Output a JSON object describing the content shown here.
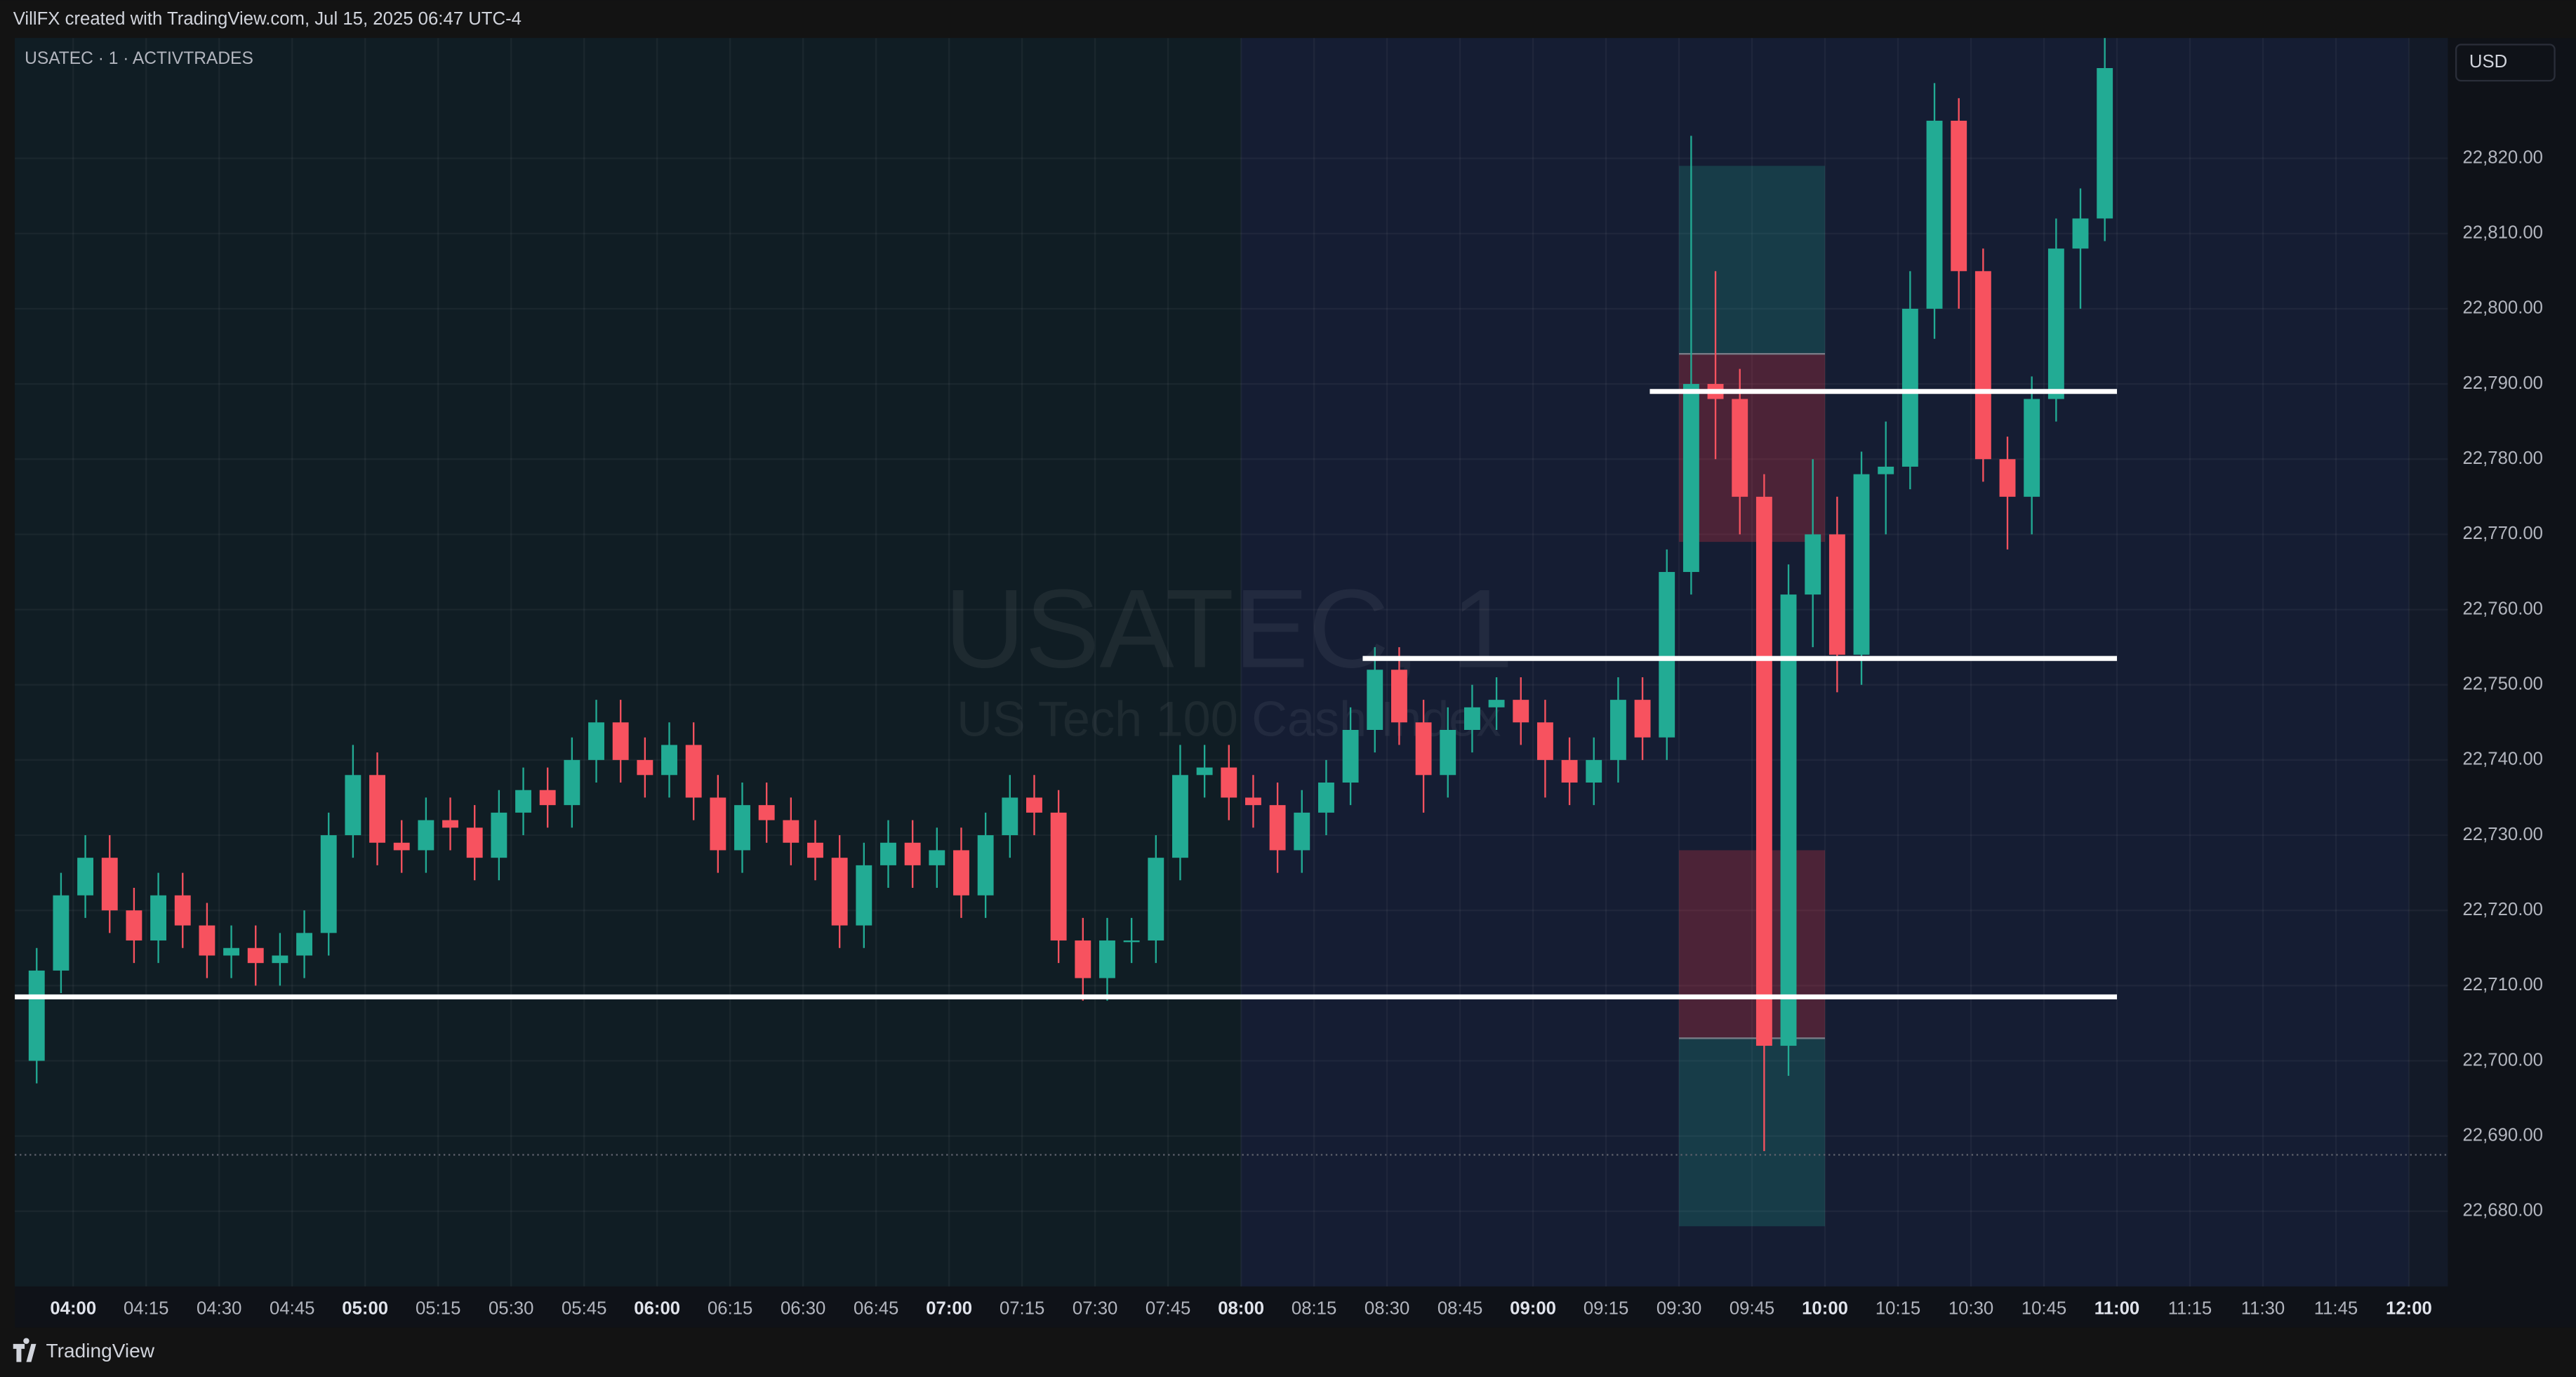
{
  "header": {
    "text": "VillFX created with TradingView.com, Jul 15, 2025 06:47 UTC-4"
  },
  "footer": {
    "brand": "TradingView"
  },
  "chart_data": {
    "type": "candlestick",
    "title": "USATEC · 1 · ACTIVTRADES",
    "watermark": [
      "USATEC, 1",
      "US Tech 100 Cash Index"
    ],
    "currency": "USD",
    "up_color": "#22ab94",
    "down_color": "#f7525f",
    "x": [
      "03:50",
      "03:55",
      "04:00",
      "04:05",
      "04:10",
      "04:15",
      "04:20",
      "04:25",
      "04:30",
      "04:35",
      "04:40",
      "04:45",
      "04:50",
      "04:55",
      "05:00",
      "05:05",
      "05:10",
      "05:15",
      "05:20",
      "05:25",
      "05:30",
      "05:35",
      "05:40",
      "05:45",
      "05:50",
      "05:55",
      "06:00",
      "06:05",
      "06:10",
      "06:15",
      "06:20",
      "06:25",
      "06:30",
      "06:35",
      "06:40",
      "06:45",
      "06:50",
      "06:55",
      "07:00",
      "07:05",
      "07:10",
      "07:15",
      "07:20",
      "07:25",
      "07:30",
      "07:35",
      "07:40",
      "07:45",
      "07:50",
      "07:55",
      "08:00",
      "08:05",
      "08:10",
      "08:15",
      "08:20",
      "08:25",
      "08:30",
      "08:35",
      "08:40",
      "08:45",
      "08:50",
      "08:55",
      "09:00",
      "09:05",
      "09:10",
      "09:15",
      "09:20",
      "09:25",
      "09:30",
      "09:35",
      "09:40",
      "09:45",
      "09:50",
      "09:55",
      "10:00",
      "10:05",
      "10:10",
      "10:15",
      "10:20",
      "10:25",
      "10:30",
      "10:35",
      "10:40",
      "10:45",
      "10:50",
      "10:55"
    ],
    "open": [
      22700,
      22712,
      22722,
      22727,
      22720,
      22716,
      22722,
      22718,
      22714,
      22715,
      22713,
      22714,
      22717,
      22730,
      22738,
      22729,
      22728,
      22732,
      22731,
      22727,
      22733,
      22736,
      22734,
      22740,
      22745,
      22740,
      22738,
      22742,
      22735,
      22728,
      22734,
      22732,
      22729,
      22727,
      22718,
      22726,
      22729,
      22726,
      22728,
      22722,
      22730,
      22735,
      22733,
      22716,
      22711,
      22716,
      22716,
      22727,
      22738,
      22739,
      22735,
      22734,
      22728,
      22733,
      22737,
      22744,
      22752,
      22745,
      22738,
      22744,
      22747,
      22748,
      22745,
      22740,
      22737,
      22740,
      22748,
      22743,
      22765,
      22790,
      22788,
      22775,
      22702,
      22762,
      22770,
      22754,
      22778,
      22779,
      22800,
      22825,
      22805,
      22780,
      22775,
      22788,
      22808,
      22812
    ],
    "high": [
      22715,
      22725,
      22730,
      22730,
      22723,
      22725,
      22725,
      22721,
      22718,
      22718,
      22717,
      22720,
      22733,
      22742,
      22741,
      22732,
      22735,
      22735,
      22734,
      22736,
      22739,
      22739,
      22743,
      22748,
      22748,
      22743,
      22745,
      22745,
      22738,
      22737,
      22737,
      22735,
      22732,
      22730,
      22729,
      22732,
      22732,
      22731,
      22731,
      22733,
      22738,
      22738,
      22736,
      22719,
      22719,
      22719,
      22730,
      22742,
      22742,
      22742,
      22738,
      22737,
      22736,
      22740,
      22747,
      22755,
      22755,
      22748,
      22747,
      22750,
      22751,
      22751,
      22748,
      22743,
      22743,
      22751,
      22751,
      22768,
      22823,
      22805,
      22792,
      22778,
      22766,
      22780,
      22775,
      22781,
      22785,
      22805,
      22830,
      22828,
      22808,
      22783,
      22791,
      22812,
      22816,
      22836
    ],
    "low": [
      22697,
      22709,
      22719,
      22717,
      22713,
      22713,
      22715,
      22711,
      22711,
      22710,
      22710,
      22711,
      22714,
      22727,
      22726,
      22725,
      22725,
      22728,
      22724,
      22724,
      22730,
      22731,
      22731,
      22737,
      22737,
      22735,
      22735,
      22732,
      22725,
      22725,
      22729,
      22726,
      22724,
      22715,
      22715,
      22723,
      22723,
      22723,
      22719,
      22719,
      22727,
      22730,
      22713,
      22708,
      22708,
      22713,
      22713,
      22724,
      22735,
      22732,
      22731,
      22725,
      22725,
      22730,
      22734,
      22741,
      22742,
      22733,
      22735,
      22741,
      22744,
      22742,
      22735,
      22734,
      22734,
      22737,
      22740,
      22740,
      22762,
      22780,
      22770,
      22688,
      22698,
      22755,
      22749,
      22750,
      22770,
      22776,
      22796,
      22800,
      22777,
      22768,
      22770,
      22785,
      22800,
      22809
    ],
    "close": [
      22712,
      22722,
      22727,
      22720,
      22716,
      22722,
      22718,
      22714,
      22715,
      22713,
      22714,
      22717,
      22730,
      22738,
      22729,
      22728,
      22732,
      22731,
      22727,
      22733,
      22736,
      22734,
      22740,
      22745,
      22740,
      22738,
      22742,
      22735,
      22728,
      22734,
      22732,
      22729,
      22727,
      22718,
      22726,
      22729,
      22726,
      22728,
      22722,
      22730,
      22735,
      22733,
      22716,
      22711,
      22716,
      22716,
      22727,
      22738,
      22739,
      22735,
      22734,
      22728,
      22733,
      22737,
      22744,
      22752,
      22745,
      22738,
      22744,
      22747,
      22748,
      22745,
      22740,
      22737,
      22740,
      22748,
      22743,
      22765,
      22790,
      22788,
      22775,
      22702,
      22762,
      22770,
      22754,
      22778,
      22779,
      22800,
      22825,
      22805,
      22780,
      22775,
      22788,
      22808,
      22812,
      22832
    ],
    "xlim": [
      "03:48",
      "12:08"
    ],
    "xticks": [
      "04:00",
      "04:15",
      "04:30",
      "04:45",
      "05:00",
      "05:15",
      "05:30",
      "05:45",
      "06:00",
      "06:15",
      "06:30",
      "06:45",
      "07:00",
      "07:15",
      "07:30",
      "07:45",
      "08:00",
      "08:15",
      "08:30",
      "08:45",
      "09:00",
      "09:15",
      "09:30",
      "09:45",
      "10:00",
      "10:15",
      "10:30",
      "10:45",
      "11:00",
      "11:15",
      "11:30",
      "11:45",
      "12:00"
    ],
    "ylim": [
      22670,
      22836
    ],
    "yticks": [
      {
        "value": 22680,
        "label": "22,680.00"
      },
      {
        "value": 22690,
        "label": "22,690.00"
      },
      {
        "value": 22700,
        "label": "22,700.00"
      },
      {
        "value": 22710,
        "label": "22,710.00"
      },
      {
        "value": 22720,
        "label": "22,720.00"
      },
      {
        "value": 22730,
        "label": "22,730.00"
      },
      {
        "value": 22740,
        "label": "22,740.00"
      },
      {
        "value": 22750,
        "label": "22,750.00"
      },
      {
        "value": 22760,
        "label": "22,760.00"
      },
      {
        "value": 22770,
        "label": "22,770.00"
      },
      {
        "value": 22780,
        "label": "22,780.00"
      },
      {
        "value": 22790,
        "label": "22,790.00"
      },
      {
        "value": 22800,
        "label": "22,800.00"
      },
      {
        "value": 22810,
        "label": "22,810.00"
      },
      {
        "value": 22820,
        "label": "22,820.00"
      }
    ],
    "grid": true,
    "session": [
      "08:00",
      "12:00"
    ],
    "levels": [
      {
        "price": 22708.5,
        "from": "03:48",
        "to": "11:00"
      },
      {
        "price": 22753.5,
        "from": "08:25",
        "to": "11:00"
      },
      {
        "price": 22789,
        "from": "09:24",
        "to": "11:00"
      }
    ],
    "positions": [
      {
        "from": "09:30",
        "to": "10:00",
        "target": 22819,
        "entry": 22794,
        "stop": 22769
      },
      {
        "from": "09:30",
        "to": "10:00",
        "target": 22678,
        "entry": 22703,
        "stop": 22728
      }
    ],
    "price_line": 22687.5
  }
}
